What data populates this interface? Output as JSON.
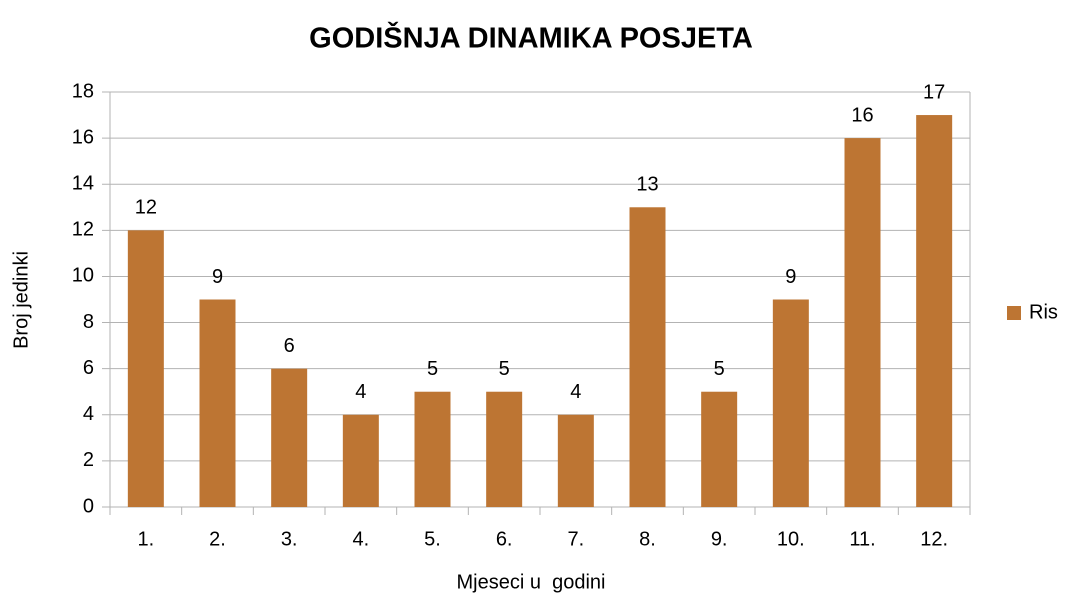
{
  "chart_data": {
    "type": "bar",
    "title": "GODIŠNJA DINAMIKA POSJETA",
    "x_label": "Mjeseci u  godini",
    "y_label": "Broj jedinki",
    "categories": [
      "1.",
      "2.",
      "3.",
      "4.",
      "5.",
      "6.",
      "7.",
      "8.",
      "9.",
      "10.",
      "11.",
      "12."
    ],
    "series": [
      {
        "name": "Ris",
        "color": "#bd7533",
        "values": [
          12,
          9,
          6,
          4,
          5,
          5,
          4,
          13,
          5,
          9,
          16,
          17
        ]
      }
    ],
    "ylim": [
      0,
      18
    ],
    "yticks": [
      0,
      2,
      4,
      6,
      8,
      10,
      12,
      14,
      16,
      18
    ],
    "grid": true,
    "legend": "right"
  }
}
